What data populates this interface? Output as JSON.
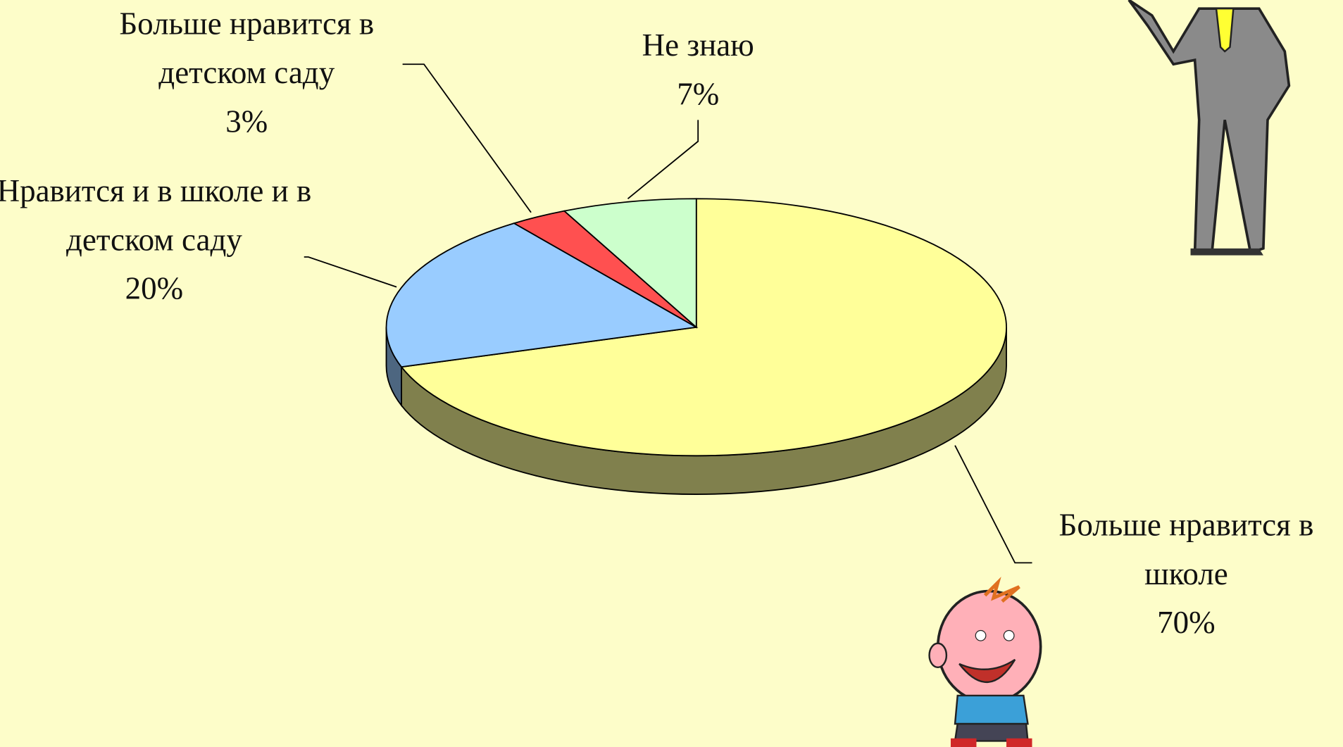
{
  "chart_data": {
    "type": "pie",
    "categories": [
      "Больше нравится в школе",
      "Нравится и в школе и в детском саду",
      "Больше нравится в детском саду",
      "Не знаю"
    ],
    "values": [
      70,
      20,
      3,
      7
    ],
    "value_labels": [
      "70%",
      "20%",
      "3%",
      "7%"
    ],
    "colors": [
      "#ffff99",
      "#99ccff",
      "#ff5050",
      "#ccffcc"
    ]
  }
}
